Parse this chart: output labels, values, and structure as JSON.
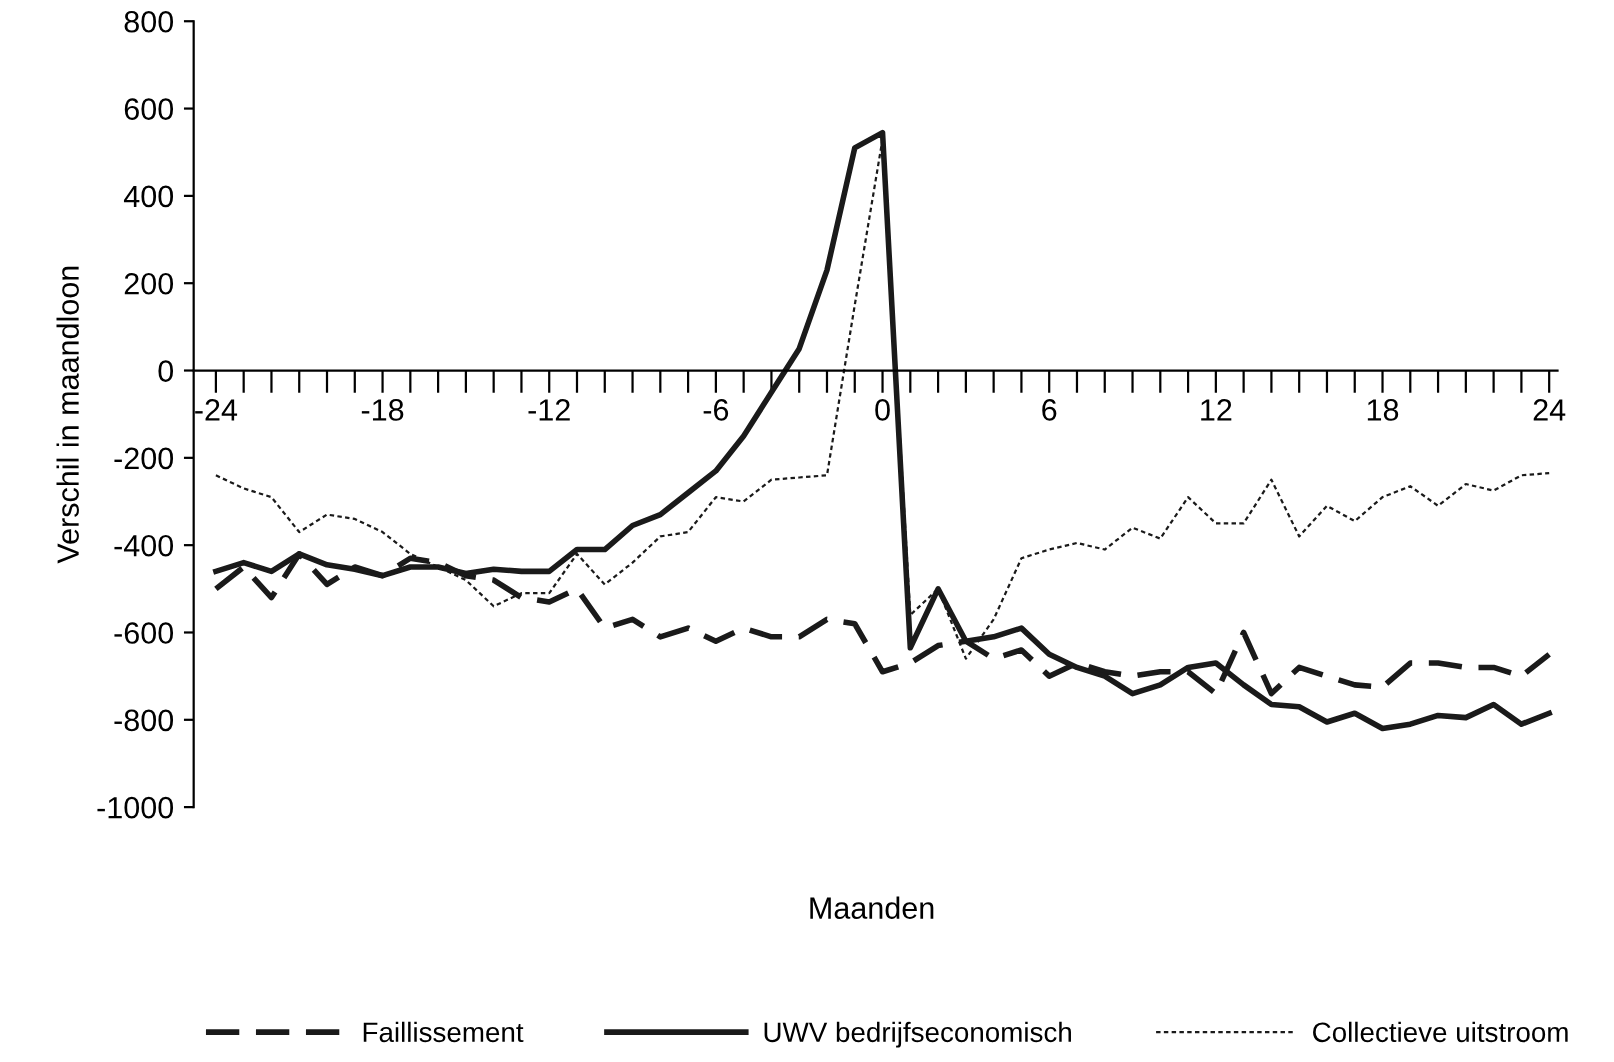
{
  "chart_data": {
    "type": "line",
    "xlabel": "Maanden",
    "ylabel": "Verschil in maandloon",
    "x": [
      -24,
      -23,
      -22,
      -21,
      -20,
      -19,
      -18,
      -17,
      -16,
      -15,
      -14,
      -13,
      -12,
      -11,
      -10,
      -9,
      -8,
      -7,
      -6,
      -5,
      -4,
      -3,
      -2,
      -1,
      0,
      1,
      2,
      3,
      4,
      5,
      6,
      7,
      8,
      9,
      10,
      11,
      12,
      13,
      14,
      15,
      16,
      17,
      18,
      19,
      20,
      21,
      22,
      23,
      24
    ],
    "series": [
      {
        "name": "Faillissement",
        "color": "#1a1a1a",
        "line_style": "dashed",
        "values": [
          -500,
          -450,
          -520,
          -420,
          -490,
          -450,
          -470,
          -430,
          -440,
          -470,
          -480,
          -520,
          -530,
          -500,
          -590,
          -570,
          -610,
          -590,
          -620,
          -590,
          -610,
          -610,
          -570,
          -580,
          -690,
          -670,
          -630,
          -620,
          -660,
          -640,
          -700,
          -670,
          -690,
          -700,
          -690,
          -690,
          -740,
          -600,
          -740,
          -680,
          -700,
          -720,
          -725,
          -670,
          -670,
          -680,
          -680,
          -700,
          -650
        ]
      },
      {
        "name": "UWV bedrijfseconomisch",
        "color": "#1a1a1a",
        "line_style": "solid",
        "values": [
          -460,
          -440,
          -460,
          -420,
          -445,
          -455,
          -470,
          -450,
          -450,
          -465,
          -455,
          -460,
          -460,
          -410,
          -410,
          -355,
          -330,
          -280,
          -230,
          -150,
          -50,
          50,
          230,
          510,
          545,
          -635,
          -500,
          -620,
          -610,
          -590,
          -650,
          -680,
          -700,
          -740,
          -720,
          -680,
          -670,
          -720,
          -765,
          -770,
          -805,
          -785,
          -820,
          -810,
          -790,
          -795,
          -765,
          -810,
          -785
        ]
      },
      {
        "name": "Collectieve uitstroom",
        "color": "#1a1a1a",
        "line_style": "dotted",
        "values": [
          -240,
          -270,
          -290,
          -370,
          -330,
          -340,
          -370,
          -420,
          -450,
          -480,
          -540,
          -510,
          -510,
          -420,
          -490,
          -440,
          -380,
          -370,
          -290,
          -300,
          -250,
          -245,
          -240,
          150,
          530,
          -560,
          -500,
          -660,
          -570,
          -430,
          -410,
          -395,
          -410,
          -360,
          -385,
          -290,
          -350,
          -350,
          -250,
          -380,
          -310,
          -345,
          -290,
          -265,
          -310,
          -260,
          -275,
          -240,
          -235
        ]
      }
    ],
    "xlim": [
      -24.8,
      24.3
    ],
    "xticks": [
      {
        "value": -24,
        "label": "-24"
      },
      {
        "value": -23,
        "label": null
      },
      {
        "value": -22,
        "label": null
      },
      {
        "value": -21,
        "label": null
      },
      {
        "value": -20,
        "label": null
      },
      {
        "value": -19,
        "label": null
      },
      {
        "value": -18,
        "label": "-18"
      },
      {
        "value": -17,
        "label": null
      },
      {
        "value": -16,
        "label": null
      },
      {
        "value": -15,
        "label": null
      },
      {
        "value": -14,
        "label": null
      },
      {
        "value": -13,
        "label": null
      },
      {
        "value": -12,
        "label": "-12"
      },
      {
        "value": -11,
        "label": null
      },
      {
        "value": -10,
        "label": null
      },
      {
        "value": -9,
        "label": null
      },
      {
        "value": -8,
        "label": null
      },
      {
        "value": -7,
        "label": null
      },
      {
        "value": -6,
        "label": "-6"
      },
      {
        "value": -5,
        "label": null
      },
      {
        "value": -4,
        "label": null
      },
      {
        "value": -3,
        "label": null
      },
      {
        "value": -2,
        "label": null
      },
      {
        "value": -1,
        "label": null
      },
      {
        "value": 0,
        "label": "0"
      },
      {
        "value": 1,
        "label": null
      },
      {
        "value": 2,
        "label": null
      },
      {
        "value": 3,
        "label": null
      },
      {
        "value": 4,
        "label": null
      },
      {
        "value": 5,
        "label": null
      },
      {
        "value": 6,
        "label": "6"
      },
      {
        "value": 7,
        "label": null
      },
      {
        "value": 8,
        "label": null
      },
      {
        "value": 9,
        "label": null
      },
      {
        "value": 10,
        "label": null
      },
      {
        "value": 11,
        "label": null
      },
      {
        "value": 12,
        "label": "12"
      },
      {
        "value": 13,
        "label": null
      },
      {
        "value": 14,
        "label": null
      },
      {
        "value": 15,
        "label": null
      },
      {
        "value": 16,
        "label": null
      },
      {
        "value": 17,
        "label": null
      },
      {
        "value": 18,
        "label": "18"
      },
      {
        "value": 19,
        "label": null
      },
      {
        "value": 20,
        "label": null
      },
      {
        "value": 21,
        "label": null
      },
      {
        "value": 22,
        "label": null
      },
      {
        "value": 23,
        "label": null
      },
      {
        "value": 24,
        "label": "24"
      }
    ],
    "ylim": [
      -1000,
      800
    ],
    "yticks": [
      -1000,
      -800,
      -600,
      -400,
      -200,
      0,
      200,
      400,
      600,
      800
    ],
    "grid": false,
    "legend": "bottom"
  }
}
